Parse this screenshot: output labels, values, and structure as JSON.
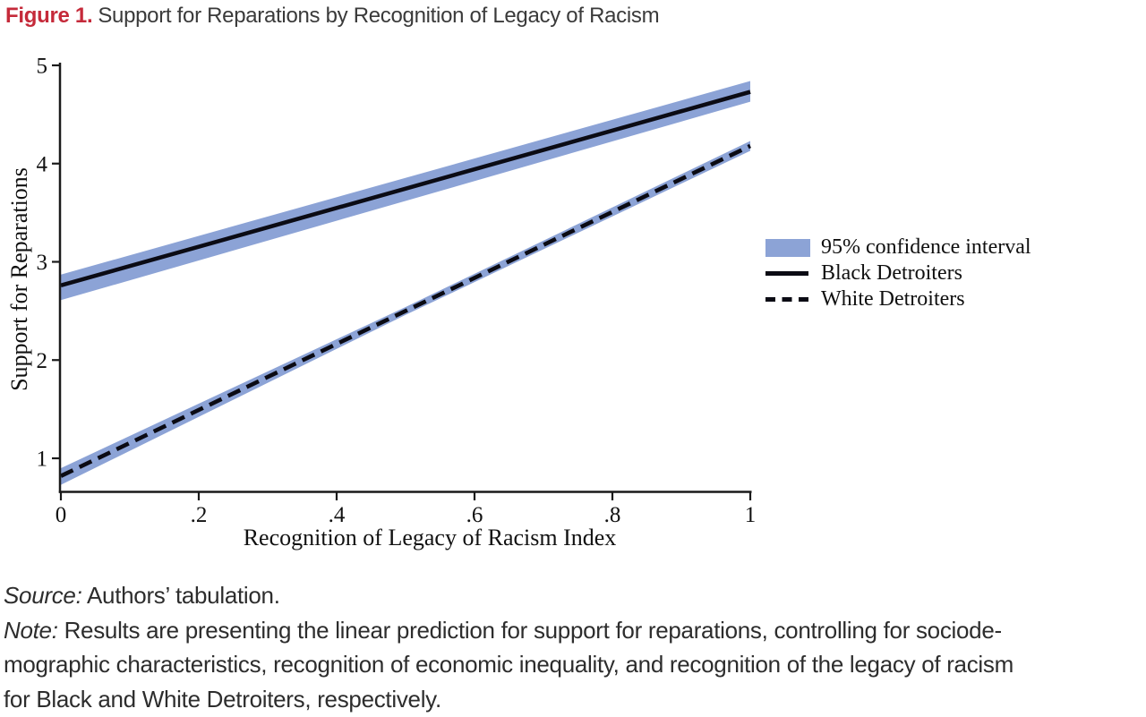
{
  "title": {
    "label": "Figure 1.",
    "text": "Support for Reparations by Recognition of Legacy of Racism"
  },
  "chart_data": {
    "type": "line",
    "title": "Support for Reparations by Recognition of Legacy of Racism",
    "xlabel": "Recognition of Legacy of Racism Index",
    "ylabel": "Support for Reparations",
    "xlim": [
      0,
      1
    ],
    "ylim": [
      0.67,
      5
    ],
    "grid": false,
    "legend_position": "right",
    "xticks": [
      0,
      0.2,
      0.4,
      0.6,
      0.8,
      1
    ],
    "xtick_labels": [
      "0",
      ".2",
      ".4",
      ".6",
      ".8",
      "1"
    ],
    "yticks": [
      5,
      4,
      3,
      2,
      1
    ],
    "ytick_labels": [
      "5",
      "4",
      "3",
      "2",
      "1"
    ],
    "axis_color": "#1a1a1a",
    "line_color": "#0b0b14",
    "ci_color": "#8ca3d6",
    "series": [
      {
        "name": "Black Detroiters",
        "style": "solid",
        "x": [
          0,
          1
        ],
        "y": [
          2.76,
          4.73
        ],
        "ci_x": [
          0,
          1
        ],
        "ci_upper": [
          2.87,
          4.84
        ],
        "ci_lower": [
          2.61,
          4.63
        ]
      },
      {
        "name": "White Detroiters",
        "style": "dashed",
        "x": [
          0,
          1
        ],
        "y": [
          0.82,
          4.18
        ],
        "ci_x": [
          0,
          0.5,
          1
        ],
        "ci_upper": [
          0.9,
          2.54,
          4.23
        ],
        "ci_lower": [
          0.73,
          2.46,
          4.13
        ]
      }
    ],
    "legend": [
      {
        "swatch": "band",
        "label": "95% confidence interval"
      },
      {
        "swatch": "solid",
        "label": "Black Detroiters"
      },
      {
        "swatch": "dashed",
        "label": "White Detroiters"
      }
    ]
  },
  "footer": {
    "source_prefix": "Source:",
    "source_text": " Authors’ tabulation.",
    "note_prefix": "Note:",
    "note_line1": " Results are presenting the linear prediction for support for reparations, controlling for sociode-",
    "note_line2": "mographic characteristics, recognition of economic inequality, and recognition of the legacy of racism",
    "note_line3": "for Black and White Detroiters, respectively."
  }
}
